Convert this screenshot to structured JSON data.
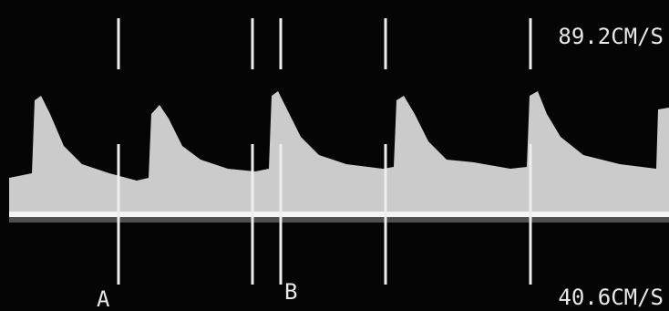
{
  "readout_top": "89.2CM/S",
  "readout_bottom": "40.6CM/S",
  "marker_a": "A",
  "marker_b": "B"
}
